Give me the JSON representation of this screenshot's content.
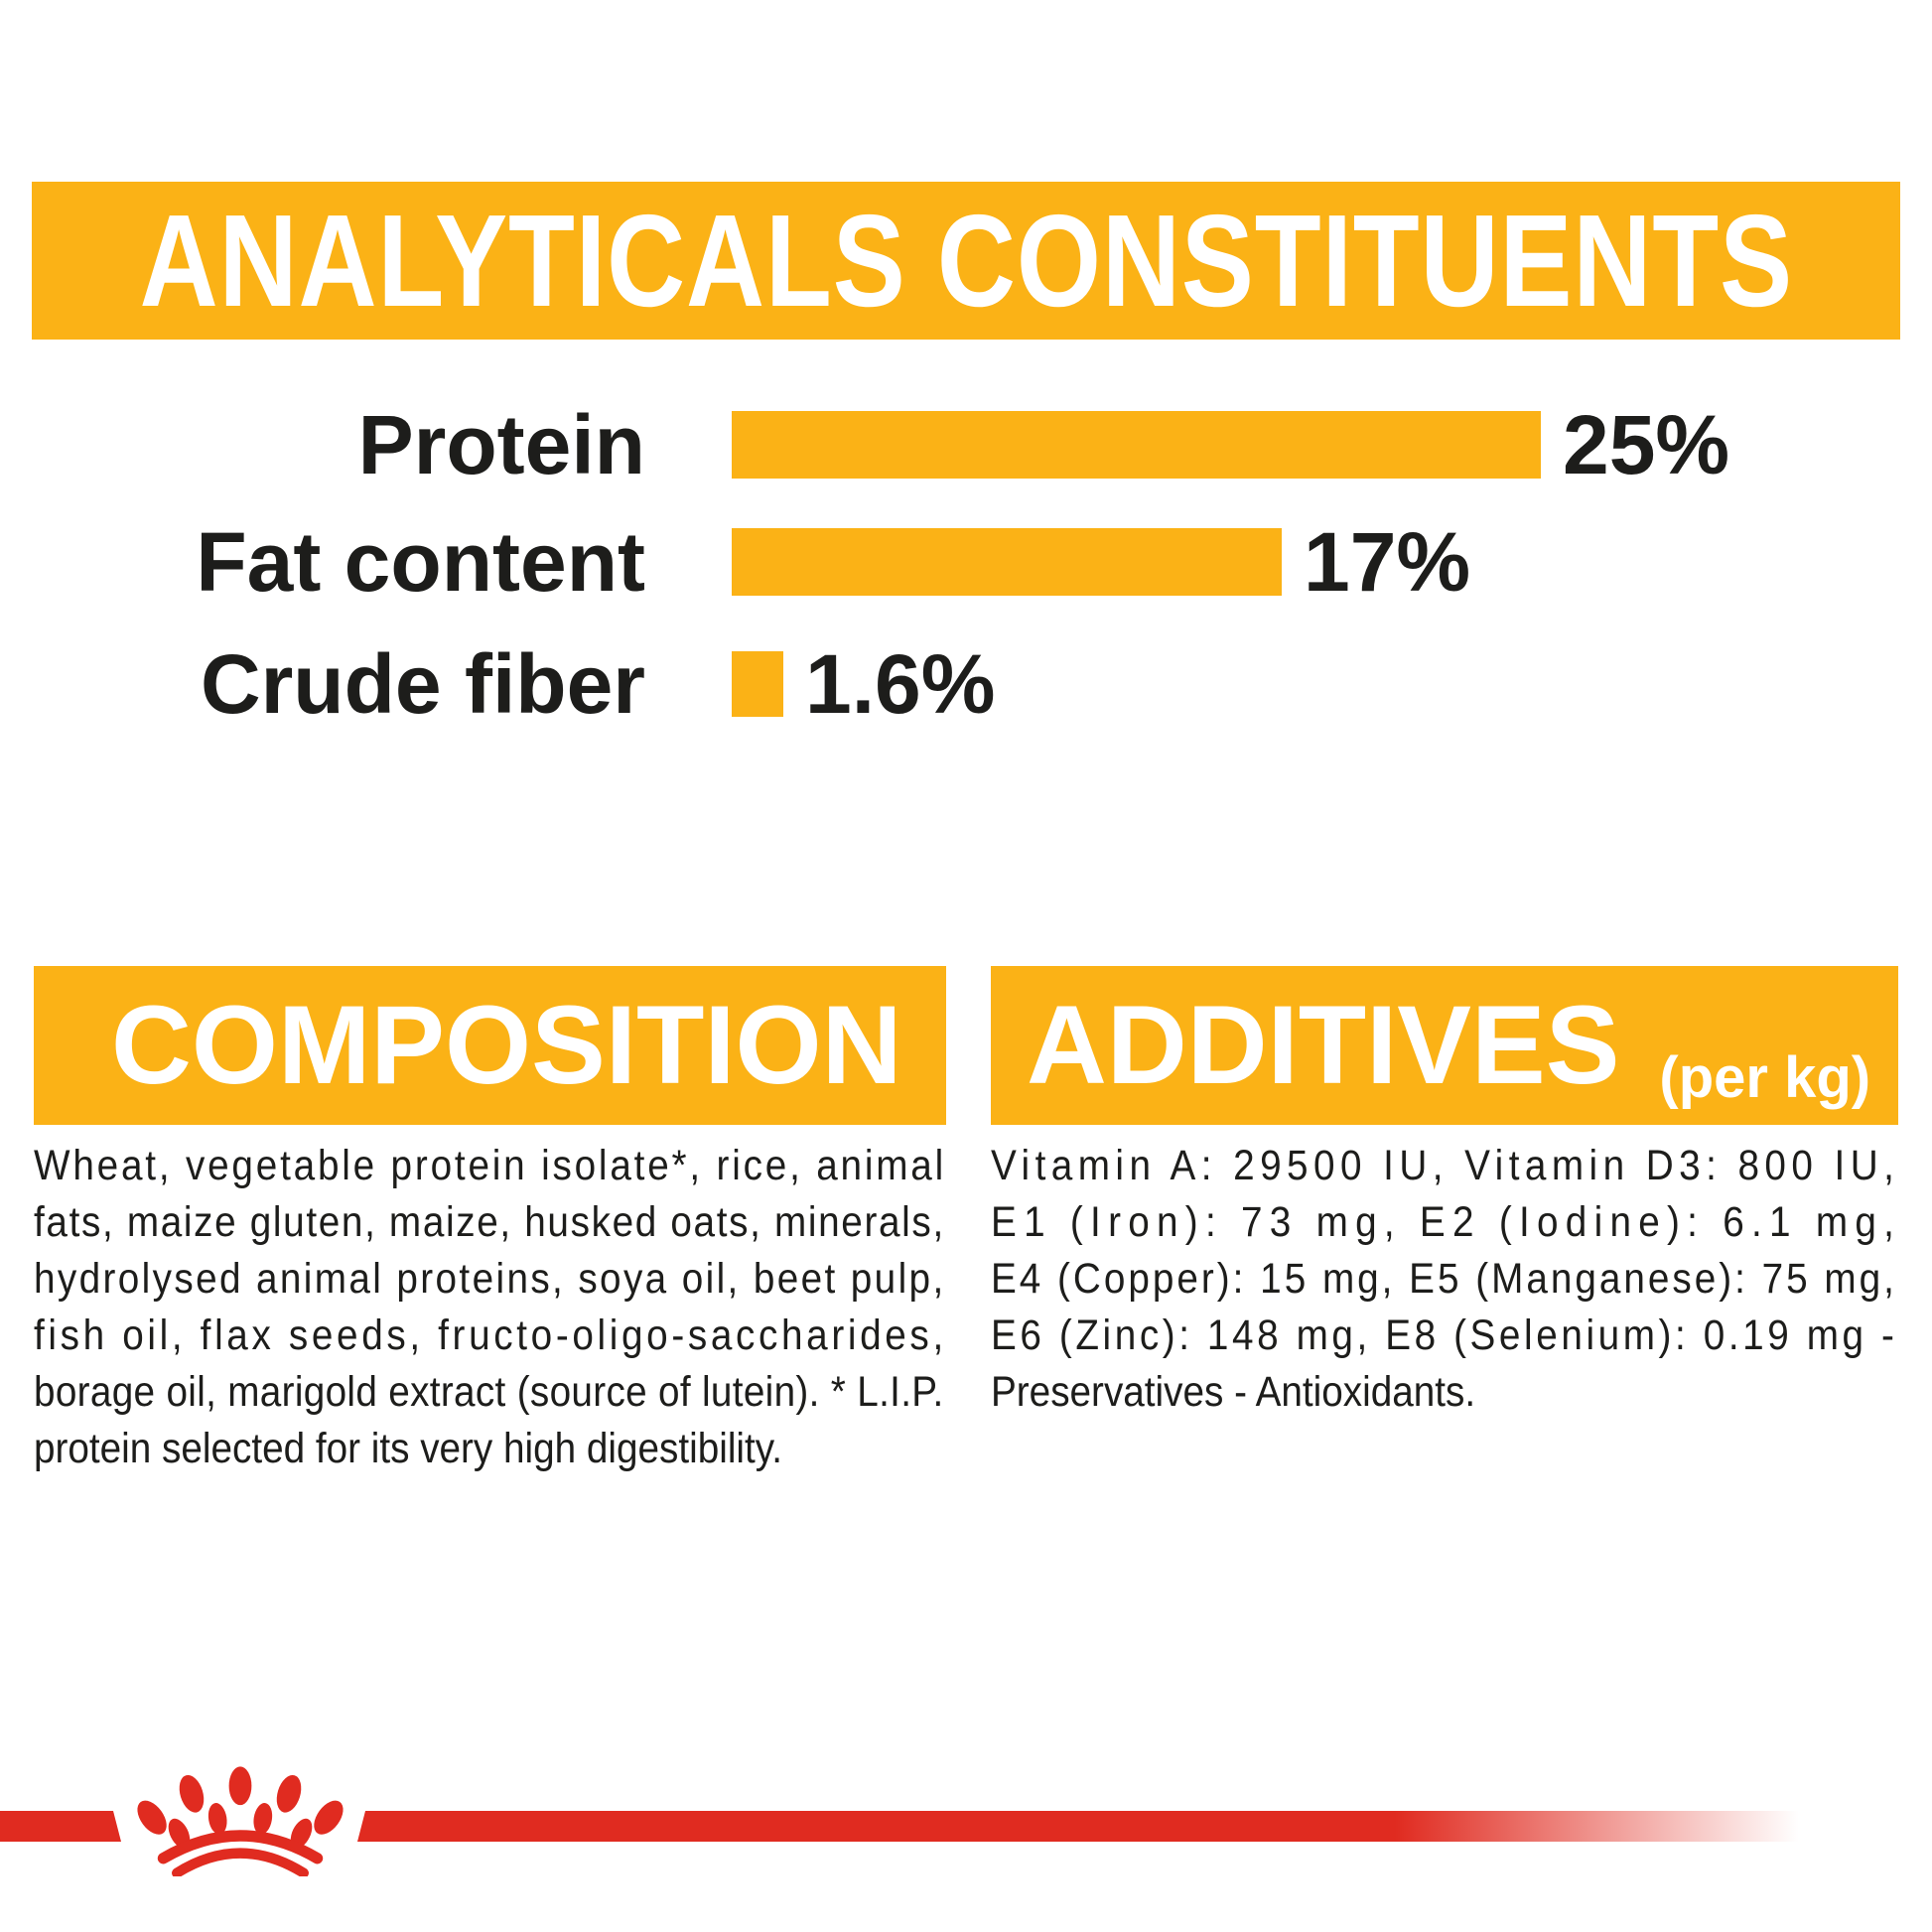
{
  "analyticals": {
    "heading": "ANALYTICALS CONSTITUENTS"
  },
  "chart_data": {
    "type": "bar",
    "orientation": "horizontal",
    "title": "ANALYTICALS CONSTITUENTS",
    "categories": [
      "Protein",
      "Fat content",
      "Crude fiber"
    ],
    "values": [
      25,
      17,
      1.6
    ],
    "unit": "%",
    "value_labels": [
      "25%",
      "17%",
      "1.6%"
    ],
    "bar_color": "#FBB216",
    "axis": "none",
    "grid": false
  },
  "composition": {
    "heading": "COMPOSITION",
    "lines": [
      "Wheat,  vegetable  protein  isolate*,  rice,  animal",
      "fats,  maize  gluten,  maize,  husked  oats,  minerals,",
      "hydrolysed  animal  proteins,  soya  oil,  beet  pulp,",
      "fish  oil,  flax  seeds,  fructo-oligo-saccharides,",
      "borage oil, marigold extract (source of lutein). * L.I.P.",
      "protein selected for its very high digestibility."
    ]
  },
  "additives": {
    "heading": "ADDITIVES",
    "heading_suffix": "(per kg)",
    "lines": [
      "Vitamin  A:  29500  IU,  Vitamin  D3:  800  IU,",
      "E1  (Iron):  73  mg,  E2  (Iodine):  6.1  mg,",
      "E4  (Copper):  15  mg,  E5  (Manganese):  75  mg,",
      "E6  (Zinc):  148  mg,  E8  (Selenium):  0.19  mg  -",
      "Preservatives - Antioxidants."
    ]
  },
  "footer": {
    "logo_icon": "royal-canin-crown"
  },
  "colors": {
    "accent_yellow": "#FBB216",
    "brand_red": "#E02B20",
    "text_black": "#1D1D1B",
    "banner_text": "#FFFFFF"
  }
}
